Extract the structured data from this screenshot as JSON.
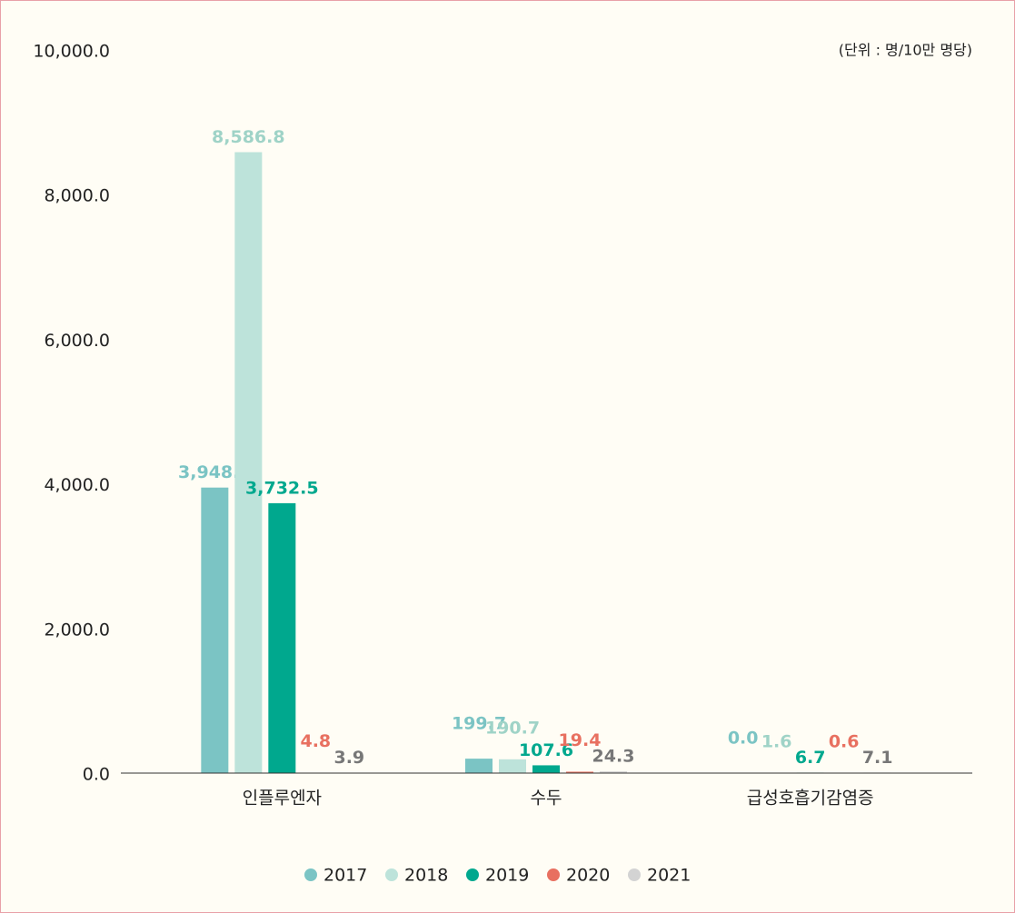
{
  "chart_data": {
    "type": "bar",
    "unit_note": "(단위 : 명/10만 명당)",
    "categories": [
      "인플루엔자",
      "수두",
      "급성호흡기감염증"
    ],
    "series": [
      {
        "name": "2017",
        "color": "#7bc4c4",
        "label_color": "#7bc4c4",
        "values": [
          3948.6,
          199.7,
          0.0
        ],
        "value_labels": [
          "3,948.6",
          "199.7",
          "0.0"
        ]
      },
      {
        "name": "2018",
        "color": "#bde3da",
        "label_color": "#9fd3c7",
        "values": [
          8586.8,
          190.7,
          1.6
        ],
        "value_labels": [
          "8,586.8",
          "190.7",
          "1.6"
        ]
      },
      {
        "name": "2019",
        "color": "#00a88e",
        "label_color": "#00a88e",
        "values": [
          3732.5,
          107.6,
          6.7
        ],
        "value_labels": [
          "3,732.5",
          "107.6",
          "6.7"
        ]
      },
      {
        "name": "2020",
        "color": "#e87060",
        "label_color": "#e87060",
        "values": [
          4.8,
          19.4,
          0.6
        ],
        "value_labels": [
          "4.8",
          "19.4",
          "0.6"
        ]
      },
      {
        "name": "2021",
        "color": "#d3d3d3",
        "label_color": "#777777",
        "values": [
          3.9,
          24.3,
          7.1
        ],
        "value_labels": [
          "3.9",
          "24.3",
          "7.1"
        ]
      }
    ],
    "ylim": [
      0,
      10000
    ],
    "yticks": [
      {
        "value": 0,
        "label": "0.0"
      },
      {
        "value": 2000,
        "label": "2,000.0"
      },
      {
        "value": 4000,
        "label": "4,000.0"
      },
      {
        "value": 6000,
        "label": "6,000.0"
      },
      {
        "value": 8000,
        "label": "8,000.0"
      },
      {
        "value": 10000,
        "label": "10,000.0"
      }
    ],
    "grid": false
  }
}
